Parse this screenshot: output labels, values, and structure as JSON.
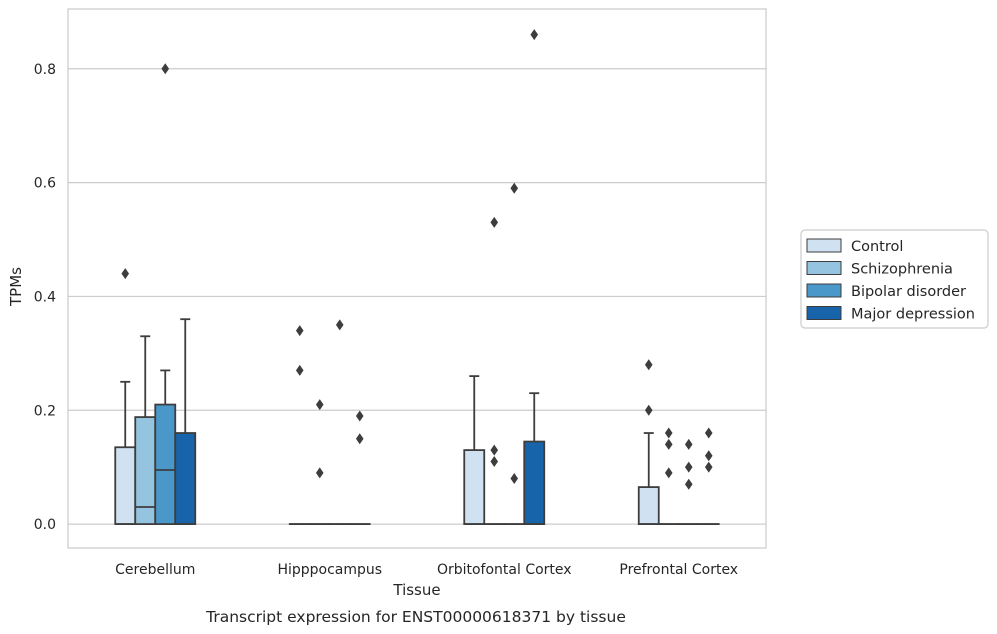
{
  "chart_data": {
    "type": "box",
    "title": "",
    "caption": "Transcript expression for ENST00000618371 by tissue",
    "xlabel": "Tissue",
    "ylabel": "TPMs",
    "ylim": [
      -0.042,
      0.905
    ],
    "yticks": [
      0.0,
      0.2,
      0.4,
      0.6,
      0.8
    ],
    "ytick_labels": [
      "0.0",
      "0.2",
      "0.4",
      "0.6",
      "0.8"
    ],
    "grid": "horizontal",
    "legend_position": "right",
    "categories": [
      "Cerebellum",
      "Hipppocampus",
      "Orbitofontal Cortex",
      "Prefrontal Cortex"
    ],
    "series": [
      {
        "name": "Control",
        "color": "#d0e1f2",
        "boxes": [
          {
            "q1": 0.0,
            "median": 0.0,
            "q3": 0.135,
            "whisker_low": 0.0,
            "whisker_high": 0.25,
            "outliers": [
              0.44
            ]
          },
          {
            "q1": 0.0,
            "median": 0.0,
            "q3": 0.0,
            "whisker_low": 0.0,
            "whisker_high": 0.0,
            "outliers": [
              0.34,
              0.27
            ]
          },
          {
            "q1": 0.0,
            "median": 0.0,
            "q3": 0.13,
            "whisker_low": 0.0,
            "whisker_high": 0.26,
            "outliers": []
          },
          {
            "q1": 0.0,
            "median": 0.0,
            "q3": 0.065,
            "whisker_low": 0.0,
            "whisker_high": 0.16,
            "outliers": [
              0.28,
              0.2
            ]
          }
        ]
      },
      {
        "name": "Schizophrenia",
        "color": "#94c4df",
        "boxes": [
          {
            "q1": 0.0,
            "median": 0.03,
            "q3": 0.188,
            "whisker_low": 0.0,
            "whisker_high": 0.33,
            "outliers": []
          },
          {
            "q1": 0.0,
            "median": 0.0,
            "q3": 0.0,
            "whisker_low": 0.0,
            "whisker_high": 0.0,
            "outliers": [
              0.21,
              0.09
            ]
          },
          {
            "q1": 0.0,
            "median": 0.0,
            "q3": 0.0,
            "whisker_low": 0.0,
            "whisker_high": 0.0,
            "outliers": [
              0.13,
              0.11,
              0.53
            ]
          },
          {
            "q1": 0.0,
            "median": 0.0,
            "q3": 0.0,
            "whisker_low": 0.0,
            "whisker_high": 0.0,
            "outliers": [
              0.09,
              0.14,
              0.16
            ]
          }
        ]
      },
      {
        "name": "Bipolar disorder",
        "color": "#4a98c9",
        "boxes": [
          {
            "q1": 0.0,
            "median": 0.095,
            "q3": 0.21,
            "whisker_low": 0.0,
            "whisker_high": 0.27,
            "outliers": [
              0.8
            ]
          },
          {
            "q1": 0.0,
            "median": 0.0,
            "q3": 0.0,
            "whisker_low": 0.0,
            "whisker_high": 0.0,
            "outliers": [
              0.35
            ]
          },
          {
            "q1": 0.0,
            "median": 0.0,
            "q3": 0.0,
            "whisker_low": 0.0,
            "whisker_high": 0.0,
            "outliers": [
              0.59,
              0.08
            ]
          },
          {
            "q1": 0.0,
            "median": 0.0,
            "q3": 0.0,
            "whisker_low": 0.0,
            "whisker_high": 0.0,
            "outliers": [
              0.14,
              0.1,
              0.07
            ]
          }
        ]
      },
      {
        "name": "Major depression",
        "color": "#1764ab",
        "boxes": [
          {
            "q1": 0.0,
            "median": 0.0,
            "q3": 0.16,
            "whisker_low": 0.0,
            "whisker_high": 0.36,
            "outliers": []
          },
          {
            "q1": 0.0,
            "median": 0.0,
            "q3": 0.0,
            "whisker_low": 0.0,
            "whisker_high": 0.0,
            "outliers": [
              0.19,
              0.15
            ]
          },
          {
            "q1": 0.0,
            "median": 0.0,
            "q3": 0.145,
            "whisker_low": 0.0,
            "whisker_high": 0.23,
            "outliers": [
              0.86
            ]
          },
          {
            "q1": 0.0,
            "median": 0.0,
            "q3": 0.0,
            "whisker_low": 0.0,
            "whisker_high": 0.0,
            "outliers": [
              0.16,
              0.12,
              0.1
            ]
          }
        ]
      }
    ]
  }
}
